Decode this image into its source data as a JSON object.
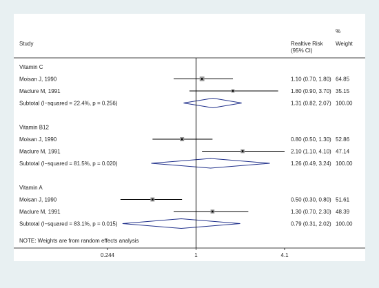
{
  "header": {
    "study": "Study",
    "effect_line1": "Realtive Risk",
    "effect_line2": "(95% CI)",
    "weight_line1": "%",
    "weight_line2": "Weight"
  },
  "note": "NOTE: Weights are from random effects analysis",
  "colors": {
    "background": "#e8f0f2",
    "diamond": "#1f2f8a",
    "line": "#000000",
    "square": "#9a9a9a"
  },
  "chart_data": {
    "type": "forest",
    "x_scale": "log",
    "xlim": [
      0.18,
      4.6
    ],
    "ticks": [
      {
        "value": 0.244,
        "label": "0.244"
      },
      {
        "value": 1,
        "label": "1"
      },
      {
        "value": 4.1,
        "label": "4.1"
      }
    ],
    "reference_line": 1,
    "groups": [
      {
        "name": "Vitamin C",
        "studies": [
          {
            "label": "Moisan J, 1990",
            "rr": 1.1,
            "lo": 0.7,
            "hi": 1.8,
            "text": "1.10 (0.70, 1.80)",
            "weight": "64.85"
          },
          {
            "label": "Maclure M, 1991",
            "rr": 1.8,
            "lo": 0.9,
            "hi": 3.7,
            "text": "1.80 (0.90, 3.70)",
            "weight": "35.15"
          }
        ],
        "subtotal": {
          "label": "Subtotal  (I−squared = 22.4%, p = 0.256)",
          "rr": 1.31,
          "lo": 0.82,
          "hi": 2.07,
          "text": "1.31 (0.82, 2.07)",
          "weight": "100.00"
        }
      },
      {
        "name": "Vitamin B12",
        "studies": [
          {
            "label": "Moisan J, 1990",
            "rr": 0.8,
            "lo": 0.5,
            "hi": 1.3,
            "text": "0.80 (0.50, 1.30)",
            "weight": "52.86"
          },
          {
            "label": "Maclure M, 1991",
            "rr": 2.1,
            "lo": 1.1,
            "hi": 4.1,
            "text": "2.10 (1.10, 4.10)",
            "weight": "47.14"
          }
        ],
        "subtotal": {
          "label": "Subtotal  (I−squared = 81.5%, p = 0.020)",
          "rr": 1.26,
          "lo": 0.49,
          "hi": 3.24,
          "text": "1.26 (0.49, 3.24)",
          "weight": "100.00"
        }
      },
      {
        "name": "Vitamin A",
        "studies": [
          {
            "label": "Moisan J, 1990",
            "rr": 0.5,
            "lo": 0.3,
            "hi": 0.8,
            "text": "0.50 (0.30, 0.80)",
            "weight": "51.61"
          },
          {
            "label": "Maclure M, 1991",
            "rr": 1.3,
            "lo": 0.7,
            "hi": 2.3,
            "text": "1.30 (0.70, 2.30)",
            "weight": "48.39"
          }
        ],
        "subtotal": {
          "label": "Subtotal  (I−squared = 83.1%, p = 0.015)",
          "rr": 0.79,
          "lo": 0.31,
          "hi": 2.02,
          "text": "0.79 (0.31, 2.02)",
          "weight": "100.00"
        }
      }
    ]
  }
}
